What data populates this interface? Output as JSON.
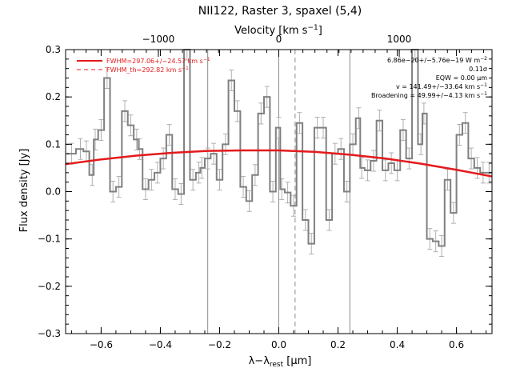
{
  "chart_data": {
    "type": "line",
    "title": "NII122, Raster 3, spaxel (5,4)",
    "xlabel": "λ−λ",
    "xlabel_sub": "rest",
    "xlabel_unit": " [μm]",
    "ylabel": "Flux density [Jy]",
    "top_axis": {
      "label": "Velocity [km s",
      "label_sup": "−1",
      "label_end": "]",
      "ticks": [
        -1000,
        0,
        1000
      ],
      "tick_labels": [
        "−1000",
        "0",
        "1000"
      ]
    },
    "xlim": [
      -0.72,
      0.72
    ],
    "ylim": [
      -0.3,
      0.3
    ],
    "x_ticks": [
      -0.6,
      -0.4,
      -0.2,
      0.0,
      0.2,
      0.4,
      0.6
    ],
    "x_tick_labels": [
      "−0.6",
      "−0.4",
      "−0.2",
      "0.0",
      "0.2",
      "0.4",
      "0.6"
    ],
    "y_ticks": [
      -0.3,
      -0.2,
      -0.1,
      0.0,
      0.1,
      0.2,
      0.3
    ],
    "y_tick_labels": [
      "−0.3",
      "−0.2",
      "−0.1",
      "0.0",
      "0.1",
      "0.2",
      "0.3"
    ],
    "vlines_solid": [
      -0.24,
      0.0,
      0.24
    ],
    "vlines_dashed": [
      0.055
    ],
    "legend_position": "top-left",
    "annotation_position": "top-right",
    "series": [
      {
        "name": "FWHM=297.06+/−24.57 km s",
        "name_sup": "−1",
        "style": "solid",
        "color": "#e41a1c",
        "x": [
          -0.72,
          -0.6,
          -0.48,
          -0.36,
          -0.24,
          -0.12,
          0.0,
          0.12,
          0.24,
          0.36,
          0.48,
          0.6,
          0.72
        ],
        "y": [
          0.058,
          0.068,
          0.076,
          0.082,
          0.086,
          0.087,
          0.087,
          0.084,
          0.078,
          0.07,
          0.059,
          0.046,
          0.032
        ]
      },
      {
        "name": "FWHM_th=292.82 km s",
        "name_sup": "−1",
        "style": "dashed",
        "color": "#e41a1c",
        "x": [
          -0.72,
          -0.6,
          -0.48,
          -0.36,
          -0.24,
          -0.12,
          0.0,
          0.12,
          0.24,
          0.36,
          0.48,
          0.6,
          0.72
        ],
        "y": [
          0.058,
          0.068,
          0.076,
          0.082,
          0.086,
          0.087,
          0.087,
          0.084,
          0.078,
          0.07,
          0.059,
          0.046,
          0.032
        ]
      }
    ],
    "spectrum": {
      "color": "#808080",
      "x": [
        -0.7,
        -0.67,
        -0.65,
        -0.63,
        -0.62,
        -0.6,
        -0.58,
        -0.56,
        -0.54,
        -0.52,
        -0.5,
        -0.48,
        -0.47,
        -0.45,
        -0.43,
        -0.41,
        -0.39,
        -0.37,
        -0.35,
        -0.33,
        -0.31,
        -0.29,
        -0.27,
        -0.26,
        -0.24,
        -0.22,
        -0.2,
        -0.18,
        -0.16,
        -0.14,
        -0.12,
        -0.1,
        -0.08,
        -0.06,
        -0.04,
        -0.02,
        0.0,
        0.01,
        0.03,
        0.05,
        0.07,
        0.09,
        0.11,
        0.13,
        0.15,
        0.17,
        0.19,
        0.21,
        0.23,
        0.25,
        0.27,
        0.28,
        0.3,
        0.32,
        0.34,
        0.36,
        0.38,
        0.4,
        0.42,
        0.44,
        0.46,
        0.48,
        0.49,
        0.51,
        0.53,
        0.55,
        0.57,
        0.59,
        0.61,
        0.63,
        0.65,
        0.67,
        0.69,
        0.71
      ],
      "y": [
        0.08,
        0.09,
        0.085,
        0.035,
        0.11,
        0.13,
        0.24,
        0.0,
        0.01,
        0.17,
        0.14,
        0.11,
        0.09,
        0.005,
        0.025,
        0.04,
        0.07,
        0.12,
        0.005,
        -0.005,
        0.3,
        0.025,
        0.04,
        0.05,
        0.07,
        0.08,
        0.025,
        0.1,
        0.235,
        0.17,
        0.01,
        -0.02,
        0.035,
        0.165,
        0.2,
        0.0,
        0.135,
        0.005,
        -0.002,
        -0.03,
        0.145,
        -0.06,
        -0.11,
        0.135,
        0.135,
        -0.06,
        0.08,
        0.09,
        0.0,
        0.1,
        0.155,
        0.05,
        0.045,
        0.065,
        0.15,
        0.045,
        0.06,
        0.045,
        0.13,
        0.07,
        0.3,
        0.1,
        0.165,
        -0.1,
        -0.105,
        -0.115,
        0.025,
        -0.045,
        0.12,
        0.145,
        0.07,
        0.05,
        0.04,
        0.04
      ],
      "err": 0.022
    },
    "annotations": [
      {
        "text": "6.86e−20+/−5.76e−19 W m",
        "sup": "−2"
      },
      {
        "text": "0.11σ",
        "sup": ""
      },
      {
        "text": "EQW = 0.00 μm",
        "sup": ""
      },
      {
        "text": "v = 141.49+/−33.64 km s",
        "sup": "−1"
      },
      {
        "text": "Broadening = 49.99+/−4.13 km s",
        "sup": "−1"
      }
    ]
  }
}
